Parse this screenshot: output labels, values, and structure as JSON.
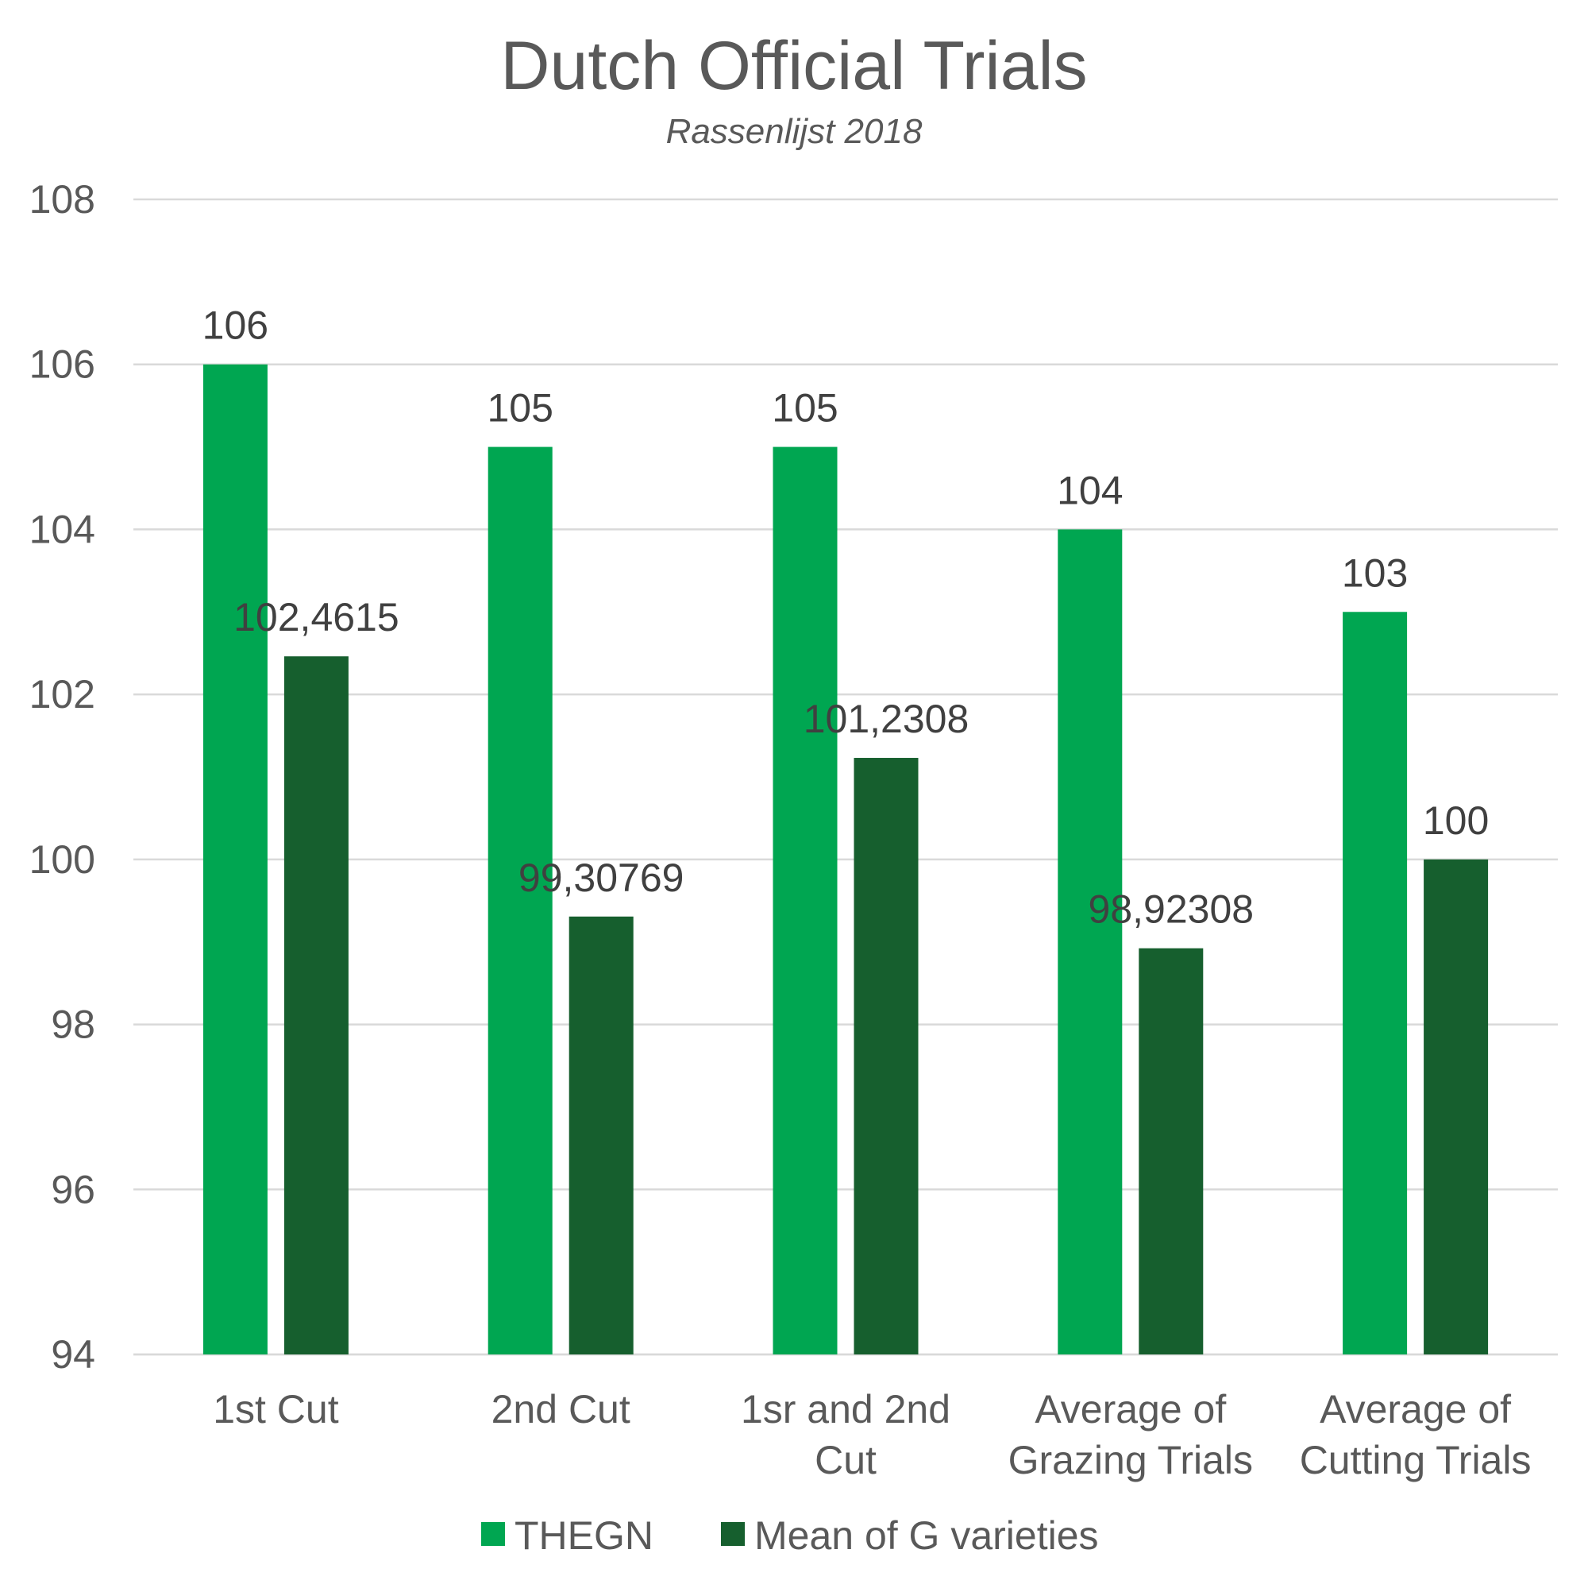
{
  "chart_data": {
    "type": "bar",
    "title": "Dutch Official Trials",
    "subtitle": "Rassenlijst 2018",
    "xlabel": "",
    "ylabel": "",
    "ylim": [
      94,
      108
    ],
    "yticks": [
      "94",
      "96",
      "98",
      "100",
      "102",
      "104",
      "106",
      "108"
    ],
    "ytick_values": [
      94,
      96,
      98,
      100,
      102,
      104,
      106,
      108
    ],
    "categories": [
      [
        "1st Cut"
      ],
      [
        "2nd Cut"
      ],
      [
        "1sr and 2nd",
        "Cut"
      ],
      [
        "Average of",
        "Grazing Trials"
      ],
      [
        "Average of",
        "Cutting Trials"
      ]
    ],
    "series": [
      {
        "name": "THEGN",
        "color": "#00a651",
        "values": [
          106,
          105,
          105,
          104,
          103
        ],
        "labels": [
          "106",
          "105",
          "105",
          "104",
          "103"
        ]
      },
      {
        "name": "Mean of G varieties",
        "color": "#165f2e",
        "values": [
          102.4615,
          99.30769,
          101.2308,
          98.92308,
          100
        ],
        "labels": [
          "102,4615",
          "99,30769",
          "101,2308",
          "98,92308",
          "100"
        ]
      }
    ],
    "grid": true,
    "legend_position": "bottom"
  }
}
